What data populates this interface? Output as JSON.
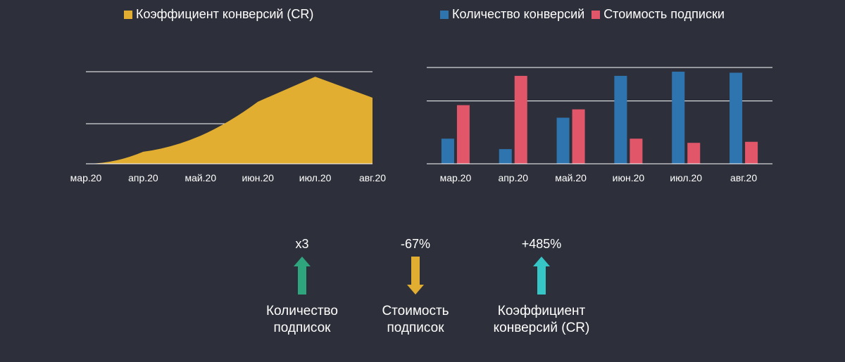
{
  "chart_data": [
    {
      "type": "area",
      "series": [
        {
          "name": "Коэффициент конверсий (CR)",
          "color": "#e2ae32",
          "x": [
            "мар.20",
            "апр.20",
            "май.20",
            "июн.20",
            "июл.20",
            "авг.20"
          ],
          "values": [
            0.0,
            0.6,
            1.4,
            3.1,
            4.35,
            3.3
          ]
        }
      ],
      "categories": [
        "мар.20",
        "апр.20",
        "май.20",
        "июн.20",
        "июл.20",
        "авг.20"
      ],
      "ylim": [
        0,
        4.6
      ],
      "gridlines": [
        2.0,
        4.6
      ],
      "legend": "top"
    },
    {
      "type": "bar",
      "categories": [
        "мар.20",
        "апр.20",
        "май.20",
        "июн.20",
        "июл.20",
        "авг.20"
      ],
      "series": [
        {
          "name": "Количество конверсий",
          "color": "#2e75b0",
          "values": [
            1.2,
            0.7,
            2.2,
            4.2,
            4.4,
            4.35
          ]
        },
        {
          "name": "Стоимость подписки",
          "color": "#e2566a",
          "values": [
            2.8,
            4.2,
            2.6,
            1.2,
            1.0,
            1.05
          ]
        }
      ],
      "ylim": [
        0,
        4.6
      ],
      "gridlines": [
        3.0,
        4.6
      ],
      "legend": "top"
    }
  ],
  "stats": [
    {
      "value": "x3",
      "direction": "up",
      "color": "#2fa57e",
      "label_lines": [
        "Количество",
        "подписок"
      ]
    },
    {
      "value": "-67%",
      "direction": "down",
      "color": "#e2ae32",
      "label_lines": [
        "Стоимость",
        "подписок"
      ]
    },
    {
      "value": "+485%",
      "direction": "up",
      "color": "#37c6c6",
      "label_lines": [
        "Коэффициент",
        "конверсий (CR)"
      ]
    }
  ]
}
